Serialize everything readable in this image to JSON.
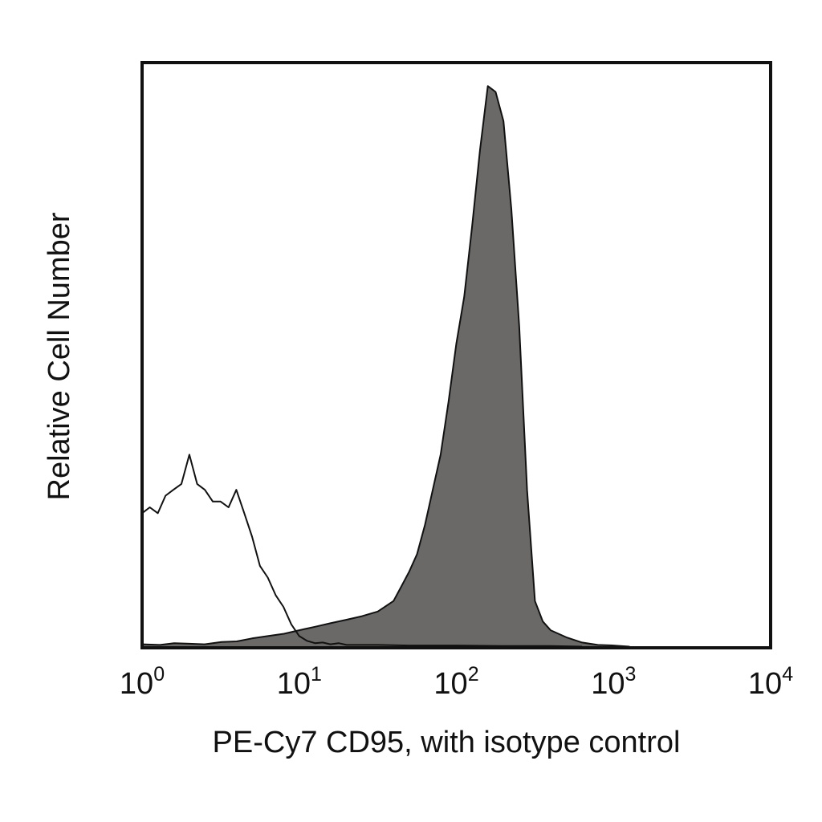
{
  "chart_data": {
    "type": "area",
    "x_scale": "log",
    "xlim": [
      1,
      10000
    ],
    "ylim": [
      0,
      100
    ],
    "grid": false,
    "xlabel": "PE-Cy7 CD95, with isotype control",
    "ylabel": "Relative Cell Number",
    "x_ticks": [
      {
        "value": 1,
        "base": "10",
        "exp": "0"
      },
      {
        "value": 10,
        "base": "10",
        "exp": "1"
      },
      {
        "value": 100,
        "base": "10",
        "exp": "2"
      },
      {
        "value": 1000,
        "base": "10",
        "exp": "3"
      },
      {
        "value": 10000,
        "base": "10",
        "exp": "4"
      }
    ],
    "colors": {
      "stained_fill": "#6b6967",
      "outline": "#111111",
      "frame": "#111111"
    },
    "series": [
      {
        "style": "filled",
        "x": [
          1.0,
          1.3,
          1.6,
          2.0,
          2.5,
          3.2,
          4.0,
          5.0,
          6.3,
          8.0,
          10.0,
          12.6,
          15.8,
          20.0,
          25.1,
          31.6,
          39.8,
          44.7,
          50.1,
          56.2,
          63.1,
          70.8,
          79.4,
          89.1,
          100.0,
          112.2,
          125.9,
          141.3,
          158.5,
          177.8,
          199.5,
          223.9,
          251.2,
          281.8,
          316.2,
          354.8,
          398.1,
          501.2,
          631.0,
          794.3,
          1000.0,
          1258.9
        ],
        "y": [
          0.6,
          0.5,
          0.8,
          0.7,
          0.6,
          1.0,
          1.1,
          1.6,
          2.0,
          2.4,
          3.0,
          3.6,
          4.2,
          4.8,
          5.4,
          6.2,
          8.0,
          10.5,
          13.0,
          16.0,
          21.0,
          27.0,
          33.0,
          42.0,
          52.0,
          60.0,
          72.0,
          85.0,
          96.0,
          95.0,
          90.0,
          75.0,
          55.0,
          27.0,
          8.0,
          4.5,
          3.0,
          1.8,
          0.9,
          0.5,
          0.4,
          0.2
        ]
      },
      {
        "style": "outline",
        "x": [
          1.0,
          1.12,
          1.26,
          1.41,
          1.58,
          1.78,
          2.0,
          2.24,
          2.51,
          2.82,
          3.16,
          3.55,
          3.98,
          4.47,
          5.01,
          5.62,
          6.31,
          7.08,
          7.94,
          8.91,
          10.0,
          11.2,
          12.6,
          14.1,
          15.8,
          17.8,
          20.0,
          31.6,
          50.1,
          100.0,
          199.5,
          398.1,
          631.0
        ],
        "y": [
          23.0,
          24.0,
          23.0,
          26.0,
          27.0,
          28.0,
          33.0,
          28.0,
          27.0,
          25.0,
          25.0,
          24.0,
          27.0,
          23.0,
          19.0,
          14.0,
          12.0,
          9.0,
          7.0,
          4.0,
          2.0,
          1.2,
          0.8,
          0.9,
          0.6,
          0.8,
          0.5,
          0.5,
          0.4,
          0.4,
          0.3,
          0.3,
          0.2
        ]
      }
    ]
  }
}
